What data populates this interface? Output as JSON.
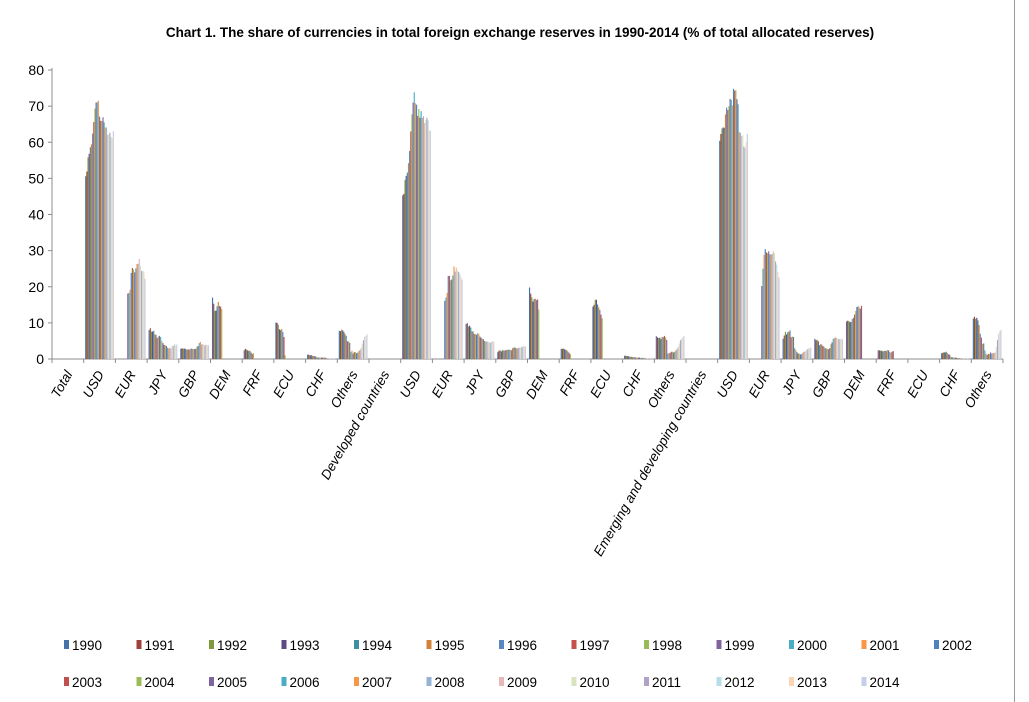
{
  "chart_data": {
    "type": "bar",
    "title": "Chart 1. The share of currencies in total foreign exchange reserves in 1990-2014  (% of total allocated reserves)",
    "ylim": [
      0,
      80
    ],
    "yticks": [
      0,
      10,
      20,
      30,
      40,
      50,
      60,
      70,
      80
    ],
    "categories": [
      "Total",
      "USD",
      "EUR",
      "JPY",
      "GBP",
      "DEM",
      "FRF",
      "ECU",
      "CHF",
      "Others",
      "Developed countries",
      "USD",
      "EUR",
      "JPY",
      "GBP",
      "DEM",
      "FRF",
      "ECU",
      "CHF",
      "Others",
      "Emerging and developing countries",
      "USD",
      "EUR",
      "JPY",
      "GBP",
      "DEM",
      "FRF",
      "ECU",
      "CHF",
      "Others"
    ],
    "grid": false,
    "legend_position": "bottom",
    "series_names": [
      "1990",
      "1991",
      "1992",
      "1993",
      "1994",
      "1995",
      "1996",
      "1997",
      "1998",
      "1999",
      "2000",
      "2001",
      "2002",
      "2003",
      "2004",
      "2005",
      "2006",
      "2007",
      "2008",
      "2009",
      "2010",
      "2011",
      "2012",
      "2013",
      "2014"
    ],
    "series_colors": [
      "#4472a8",
      "#a0403d",
      "#7f9a3e",
      "#5f4a85",
      "#3e8fa3",
      "#d3823a",
      "#5a86c1",
      "#c4504d",
      "#9bbb59",
      "#8064a2",
      "#4bacc6",
      "#f79646",
      "#4f81bd",
      "#c0504d",
      "#9bbb59",
      "#8064a2",
      "#4bacc6",
      "#f79646",
      "#95b3d7",
      "#e6b9b8",
      "#d7e4bd",
      "#b3a2c7",
      "#b7dee8",
      "#fcd5b5",
      "#c5cfe8"
    ],
    "values": [
      [
        null,
        null,
        null,
        null,
        null,
        null,
        null,
        null,
        null,
        null,
        null,
        null,
        null,
        null,
        null,
        null,
        null,
        null,
        null,
        null,
        null,
        null,
        null,
        null,
        null
      ],
      [
        50.6,
        51.9,
        55.8,
        56.8,
        58.6,
        59.4,
        62.4,
        65.6,
        69.3,
        71.0,
        71.1,
        71.5,
        67.1,
        65.9,
        65.9,
        66.9,
        65.5,
        64.1,
        64.1,
        62.1,
        62.1,
        62.6,
        61.5,
        61.2,
        63.1
      ],
      [
        null,
        null,
        null,
        null,
        null,
        null,
        null,
        null,
        null,
        18.1,
        18.3,
        19.2,
        23.8,
        25.2,
        24.8,
        24.0,
        25.1,
        26.3,
        26.4,
        27.7,
        25.8,
        24.4,
        24.3,
        24.2,
        22.2
      ],
      [
        8.0,
        8.5,
        7.6,
        7.6,
        7.8,
        6.8,
        6.7,
        5.8,
        6.2,
        6.4,
        6.1,
        5.0,
        4.4,
        3.9,
        3.8,
        3.6,
        3.1,
        2.9,
        3.1,
        2.9,
        3.7,
        3.6,
        4.1,
        3.8,
        4.0
      ],
      [
        2.8,
        3.0,
        2.8,
        2.9,
        2.8,
        2.6,
        2.7,
        2.6,
        2.7,
        2.9,
        2.8,
        2.7,
        2.8,
        2.8,
        3.4,
        3.6,
        4.4,
        4.7,
        4.0,
        4.2,
        3.9,
        3.8,
        4.0,
        3.9,
        3.8
      ],
      [
        17.0,
        15.3,
        13.3,
        13.4,
        14.6,
        15.8,
        14.7,
        14.5,
        13.8,
        null,
        null,
        null,
        null,
        null,
        null,
        null,
        null,
        null,
        null,
        null,
        null,
        null,
        null,
        null,
        null
      ],
      [
        2.4,
        2.8,
        2.6,
        2.4,
        2.2,
        2.3,
        1.8,
        1.4,
        1.6,
        null,
        null,
        null,
        null,
        null,
        null,
        null,
        null,
        null,
        null,
        null,
        null,
        null,
        null,
        null,
        null
      ],
      [
        10.1,
        10.0,
        9.5,
        8.2,
        8.0,
        8.3,
        7.5,
        6.1,
        1.0,
        null,
        null,
        null,
        null,
        null,
        null,
        null,
        null,
        null,
        null,
        null,
        null,
        null,
        null,
        null,
        null
      ],
      [
        1.2,
        1.2,
        1.0,
        1.1,
        0.9,
        0.8,
        0.8,
        0.7,
        0.5,
        0.4,
        0.4,
        0.4,
        0.4,
        0.4,
        0.4,
        0.4,
        0.3,
        0.2,
        0.2,
        0.1,
        0.1,
        0.1,
        0.3,
        0.3,
        0.3
      ],
      [
        7.8,
        7.7,
        8.1,
        7.9,
        7.5,
        6.9,
        6.4,
        4.9,
        4.9,
        4.5,
        1.9,
        2.3,
        1.5,
        1.9,
        1.9,
        1.6,
        1.8,
        2.2,
        2.5,
        3.1,
        4.3,
        5.2,
        6.1,
        6.4,
        6.8
      ],
      [
        null,
        null,
        null,
        null,
        null,
        null,
        null,
        null,
        null,
        null,
        null,
        null,
        null,
        null,
        null,
        null,
        null,
        null,
        null,
        null,
        null,
        null,
        null,
        null,
        null
      ],
      [
        45.3,
        45.7,
        49.6,
        50.7,
        51.6,
        54.2,
        57.6,
        63.0,
        67.7,
        71.0,
        73.8,
        70.8,
        70.4,
        67.3,
        69.2,
        66.8,
        68.6,
        66.7,
        67.2,
        65.3,
        66.1,
        66.8,
        66.1,
        63.4,
        63.1
      ],
      [
        null,
        null,
        null,
        null,
        null,
        null,
        null,
        null,
        null,
        16.1,
        17.0,
        18.3,
        23.0,
        23.0,
        21.8,
        22.0,
        23.1,
        25.6,
        24.2,
        25.3,
        24.5,
        24.1,
        23.7,
        22.8,
        22.0
      ],
      [
        9.7,
        9.9,
        9.0,
        9.2,
        8.7,
        7.7,
        7.6,
        6.9,
        7.0,
        6.7,
        7.1,
        7.0,
        6.2,
        5.9,
        5.6,
        5.5,
        5.0,
        4.8,
        4.9,
        4.7,
        4.6,
        4.5,
        4.8,
        4.9,
        4.8
      ],
      [
        1.9,
        2.3,
        2.4,
        2.1,
        2.4,
        2.4,
        2.3,
        2.5,
        2.5,
        2.6,
        2.5,
        2.6,
        2.4,
        3.0,
        3.3,
        3.1,
        3.0,
        2.9,
        3.1,
        3.2,
        3.1,
        3.3,
        3.6,
        3.6,
        3.4
      ],
      [
        19.8,
        18.1,
        17.1,
        15.9,
        16.6,
        16.7,
        16.3,
        16.5,
        13.7,
        null,
        null,
        null,
        null,
        null,
        null,
        null,
        null,
        null,
        null,
        null,
        null,
        null,
        null,
        null,
        null
      ],
      [
        2.8,
        2.8,
        2.9,
        2.7,
        2.5,
        2.4,
        2.0,
        1.6,
        1.3,
        null,
        null,
        null,
        null,
        null,
        null,
        null,
        null,
        null,
        null,
        null,
        null,
        null,
        null,
        null,
        null
      ],
      [
        14.5,
        15.0,
        16.4,
        16.4,
        15.1,
        14.3,
        13.6,
        12.3,
        11.3,
        null,
        null,
        null,
        null,
        null,
        null,
        null,
        null,
        null,
        null,
        null,
        null,
        null,
        null,
        null,
        null
      ],
      [
        0.9,
        0.9,
        0.8,
        0.8,
        0.7,
        0.6,
        0.6,
        0.5,
        0.5,
        0.5,
        0.4,
        0.4,
        0.4,
        0.4,
        0.3,
        0.3,
        0.3,
        0.3,
        0.3,
        0.3,
        0.2,
        0.2,
        0.3,
        0.3,
        0.3
      ],
      [
        6.3,
        6.0,
        5.8,
        5.9,
        5.5,
        6.1,
        6.0,
        6.4,
        6.0,
        5.3,
        1.5,
        1.6,
        1.7,
        2.0,
        2.0,
        1.8,
        2.0,
        2.4,
        2.8,
        3.4,
        4.3,
        5.2,
        5.6,
        6.0,
        6.3
      ],
      [
        null,
        null,
        null,
        null,
        null,
        null,
        null,
        null,
        null,
        null,
        null,
        null,
        null,
        null,
        null,
        null,
        null,
        null,
        null,
        null,
        null,
        null,
        null,
        null,
        null
      ],
      [
        60.4,
        62.3,
        63.8,
        64.1,
        64.0,
        67.7,
        69.6,
        68.9,
        70.0,
        72.0,
        71.7,
        70.2,
        74.8,
        74.3,
        74.4,
        71.9,
        70.5,
        62.8,
        62.6,
        61.7,
        62.0,
        58.8,
        58.4,
        60.1,
        62.3
      ],
      [
        null,
        null,
        null,
        null,
        null,
        null,
        null,
        null,
        null,
        20.2,
        25.0,
        28.8,
        30.4,
        29.5,
        29.3,
        29.8,
        29.0,
        28.9,
        29.1,
        29.8,
        29.3,
        27.0,
        26.1,
        24.1,
        22.6
      ],
      [
        5.6,
        6.5,
        7.5,
        6.8,
        7.4,
        7.6,
        7.9,
        6.0,
        6.2,
        6.1,
        3.0,
        2.5,
        1.9,
        1.5,
        1.5,
        1.3,
        1.3,
        1.7,
        2.0,
        2.1,
        2.3,
        2.7,
        2.9,
        3.0,
        3.2
      ],
      [
        5.6,
        5.2,
        5.3,
        4.9,
        3.8,
        4.1,
        4.0,
        3.6,
        3.4,
        3.0,
        2.9,
        2.8,
        2.7,
        3.0,
        4.1,
        4.6,
        5.6,
        5.8,
        6.0,
        5.8,
        5.6,
        5.5,
        5.6,
        5.5,
        5.6
      ],
      [
        10.4,
        10.6,
        10.5,
        10.2,
        10.3,
        11.1,
        11.4,
        12.3,
        13.3,
        14.4,
        14.6,
        14.3,
        13.9,
        14.7,
        null,
        null,
        null,
        null,
        null,
        null,
        null,
        null,
        null,
        null,
        null
      ],
      [
        2.4,
        2.4,
        2.3,
        2.3,
        2.1,
        2.2,
        2.3,
        2.2,
        2.5,
        2.4,
        1.9,
        1.8,
        2.0,
        2.2,
        null,
        null,
        null,
        null,
        null,
        null,
        null,
        null,
        null,
        null,
        null
      ],
      [
        null,
        null,
        null,
        null,
        null,
        null,
        null,
        null,
        null,
        null,
        null,
        null,
        null,
        null,
        null,
        null,
        null,
        null,
        null,
        null,
        null,
        null,
        null,
        null,
        null
      ],
      [
        1.6,
        1.7,
        1.9,
        1.8,
        2.0,
        1.6,
        1.3,
        1.2,
        0.6,
        0.5,
        0.4,
        0.4,
        0.4,
        0.3,
        0.3,
        0.2,
        0.2,
        0.2,
        0.2,
        0.2,
        0.2,
        0.2,
        0.2,
        0.3,
        0.3
      ],
      [
        11.2,
        11.7,
        11.1,
        11.4,
        10.7,
        9.4,
        7.0,
        5.9,
        4.2,
        4.3,
        2.4,
        1.5,
        1.1,
        1.4,
        1.4,
        1.8,
        1.5,
        1.6,
        1.7,
        1.8,
        3.3,
        5.3,
        7.0,
        7.7,
        8.0
      ]
    ]
  }
}
